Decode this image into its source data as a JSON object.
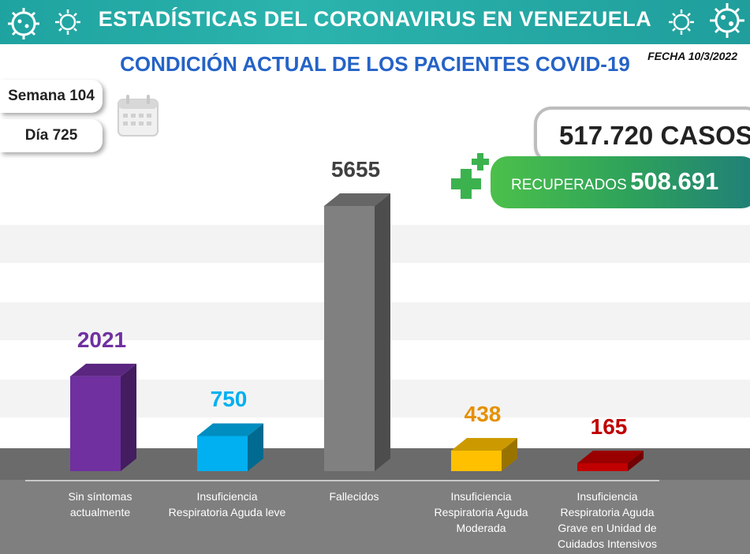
{
  "header": {
    "banner_title": "ESTADÍSTICAS DEL CORONAVIRUS EN VENEZUELA",
    "subtitle": "CONDICIÓN ACTUAL DE LOS PACIENTES COVID-19",
    "date": "FECHA 10/3/2022"
  },
  "info": {
    "week": "Semana 104",
    "day": "Día 725",
    "cases": "517.720 CASOS",
    "recovered_label": "RECUPERADOS",
    "recovered_value": "508.691"
  },
  "colors": {
    "banner": "#2bb3ad",
    "subtitle": "#2563c7",
    "recovered_green": "#3cb24f",
    "plus_green": "#3cb24f"
  },
  "chart_data": {
    "type": "bar",
    "categories": [
      "Sin síntomas actualmente",
      "Insuficiencia Respiratoria Aguda leve",
      "Fallecidos",
      "Insuficiencia Respiratoria Aguda Moderada",
      "Insuficiencia Respiratoria Aguda Grave en Unidad de Cuidados Intensivos"
    ],
    "values": [
      2021,
      750,
      5655,
      438,
      165
    ],
    "value_labels": [
      "2021",
      "750",
      "5655",
      "438",
      "165"
    ],
    "colors": [
      "#7030a0",
      "#00b0f0",
      "#808080",
      "#ffc000",
      "#c00000"
    ],
    "label_colors": [
      "#7030a0",
      "#00b0f0",
      "#404040",
      "#e69000",
      "#c00000"
    ],
    "title": "",
    "xlabel": "",
    "ylabel": "",
    "grid": true,
    "legend": "none"
  }
}
